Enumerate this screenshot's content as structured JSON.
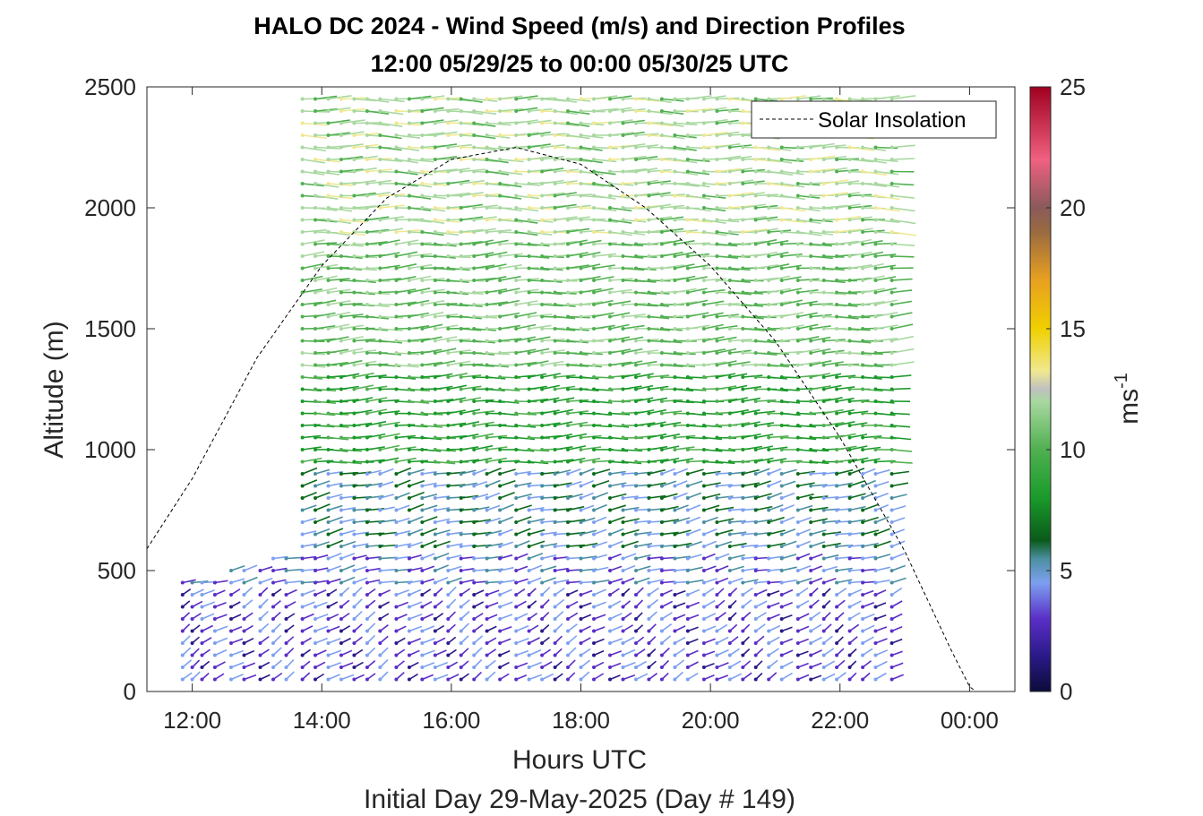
{
  "chart_data": {
    "type": "wind-barb-profile",
    "title": "HALO DC 2024 - Wind Speed (m/s) and Direction Profiles",
    "subtitle": "12:00 05/29/25 to 00:00 05/30/25  UTC",
    "xlabel": "Hours UTC",
    "xlabel2": "Initial Day 29-May-2025 (Day # 149)",
    "ylabel": "Altitude (m)",
    "x_units": "hours UTC",
    "xlim": [
      11.3,
      24.7
    ],
    "ylim": [
      0,
      2500
    ],
    "x_ticks": [
      12,
      14,
      16,
      18,
      20,
      22,
      24
    ],
    "x_tick_labels": [
      "12:00",
      "14:00",
      "16:00",
      "18:00",
      "20:00",
      "22:00",
      "00:00"
    ],
    "y_ticks": [
      0,
      500,
      1000,
      1500,
      2000,
      2500
    ],
    "y_tick_labels": [
      "0",
      "500",
      "1000",
      "1500",
      "2000",
      "2500"
    ],
    "colorbar": {
      "label": "ms",
      "label_superscript": "-1",
      "range": [
        0,
        25
      ],
      "ticks": [
        0,
        5,
        10,
        15,
        20,
        25
      ],
      "tick_labels": [
        "0",
        "5",
        "10",
        "15",
        "20",
        "25"
      ]
    },
    "legend": {
      "entries": [
        "Solar Insolation"
      ],
      "placement": "top-right"
    },
    "solar_insolation_curve": [
      {
        "x": 11.3,
        "y": 590
      },
      {
        "x": 12.0,
        "y": 880
      },
      {
        "x": 13.0,
        "y": 1380
      },
      {
        "x": 14.0,
        "y": 1760
      },
      {
        "x": 15.0,
        "y": 2040
      },
      {
        "x": 16.0,
        "y": 2200
      },
      {
        "x": 17.0,
        "y": 2250
      },
      {
        "x": 18.0,
        "y": 2180
      },
      {
        "x": 19.0,
        "y": 2000
      },
      {
        "x": 20.0,
        "y": 1760
      },
      {
        "x": 21.0,
        "y": 1450
      },
      {
        "x": 22.0,
        "y": 1050
      },
      {
        "x": 23.0,
        "y": 580
      },
      {
        "x": 23.7,
        "y": 180
      },
      {
        "x": 24.0,
        "y": 20
      },
      {
        "x": 24.1,
        "y": 0
      },
      {
        "x": 24.7,
        "y": 0
      }
    ],
    "profile_times": [
      11.85,
      12.0,
      12.15,
      12.35,
      12.6,
      12.8,
      13.05,
      13.25,
      13.45,
      13.7,
      13.9,
      14.1,
      14.3,
      14.5,
      14.7,
      14.9,
      15.15,
      15.35,
      15.55,
      15.75,
      15.95,
      16.15,
      16.35,
      16.55,
      16.75,
      17.0,
      17.2,
      17.4,
      17.6,
      17.8,
      18.0,
      18.2,
      18.45,
      18.65,
      18.85,
      19.05,
      19.25,
      19.45,
      19.65,
      19.9,
      20.1,
      20.3,
      20.5,
      20.7,
      20.9,
      21.1,
      21.35,
      21.55,
      21.75,
      21.95,
      22.15,
      22.35,
      22.55,
      22.8
    ],
    "range_gate_spacing_m": 50,
    "wind_layers": [
      {
        "altitude_range": [
          0,
          450
        ],
        "speed_ms": 2.5,
        "direction_deg": 315,
        "description_source": "purple barbs"
      },
      {
        "altitude_range": [
          450,
          600
        ],
        "speed_ms": 3.5,
        "direction_deg": 290
      },
      {
        "altitude_range": [
          600,
          950
        ],
        "speed_ms": 4.8,
        "direction_deg": 290
      },
      {
        "altitude_range": [
          950,
          1350
        ],
        "speed_ms": 7.5,
        "direction_deg": 275
      },
      {
        "altitude_range": [
          1350,
          1900
        ],
        "speed_ms": 9.5,
        "direction_deg": 275
      },
      {
        "altitude_range": [
          1900,
          2500
        ],
        "speed_ms": 11.0,
        "direction_deg": 270
      }
    ]
  }
}
